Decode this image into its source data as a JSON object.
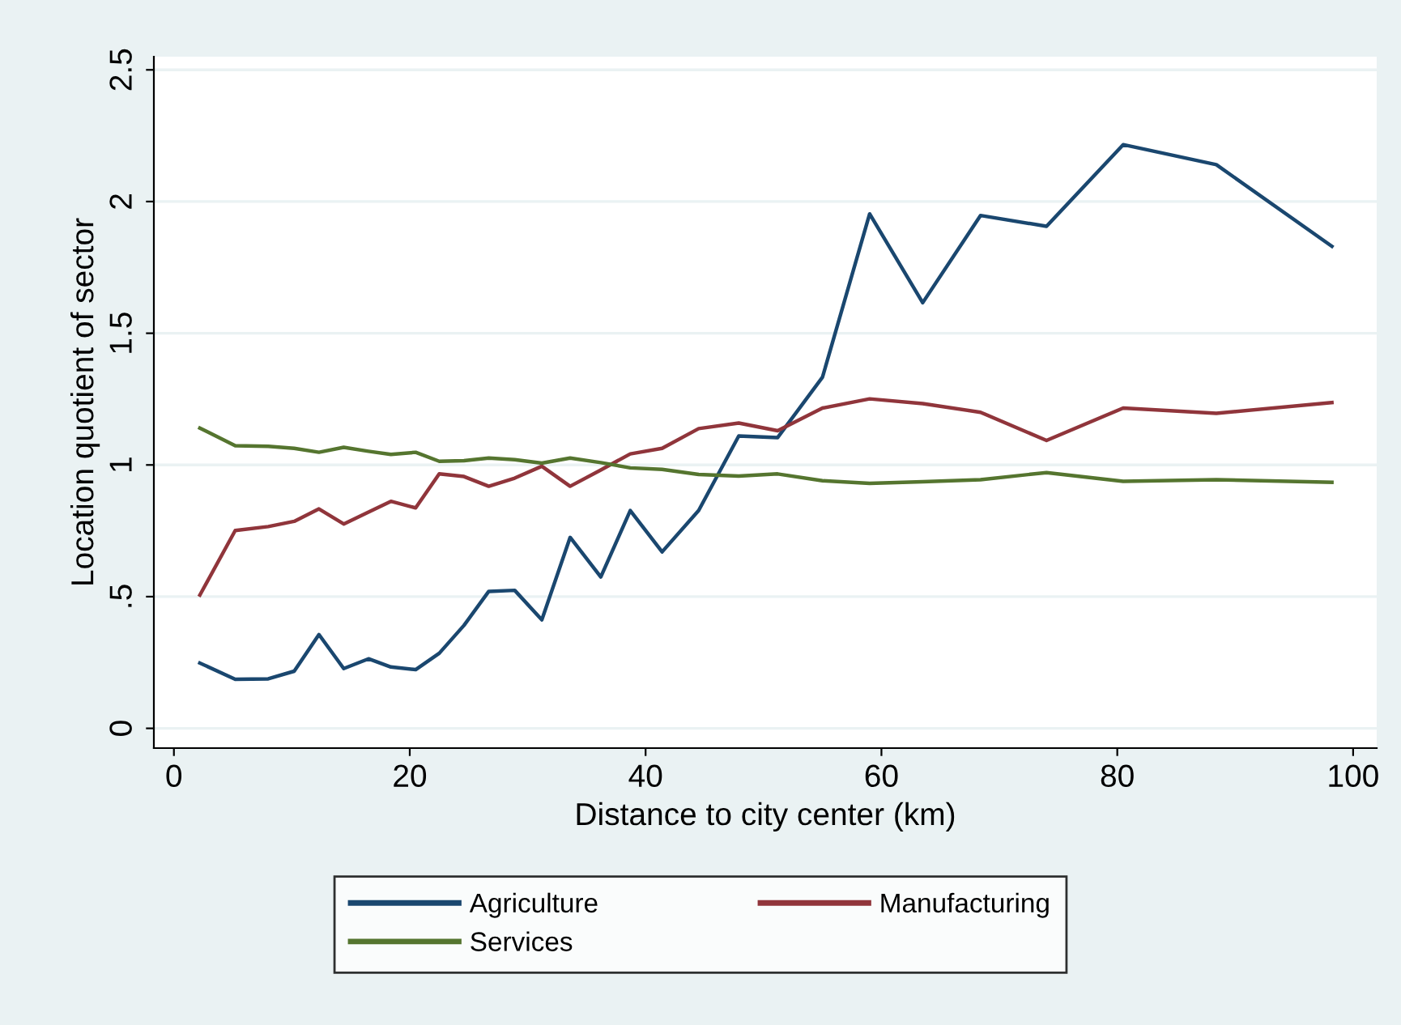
{
  "chart_data": {
    "type": "line",
    "xlabel": "Distance to city center (km)",
    "ylabel": "Location quotient of sector",
    "x": [
      2.2,
      5.2,
      8.0,
      10.2,
      12.3,
      14.4,
      16.5,
      18.4,
      20.5,
      22.5,
      24.6,
      26.7,
      28.9,
      31.2,
      33.6,
      36.2,
      38.7,
      41.4,
      44.5,
      47.9,
      51.2,
      55.0,
      59.0,
      63.5,
      68.4,
      74.0,
      80.5,
      88.4,
      98.2
    ],
    "series": [
      {
        "name": "Agriculture",
        "color": "#1a476f",
        "values": [
          0.248,
          0.186,
          0.188,
          0.217,
          0.356,
          0.227,
          0.264,
          0.233,
          0.223,
          0.285,
          0.391,
          0.52,
          0.524,
          0.412,
          0.725,
          0.575,
          0.827,
          0.67,
          0.827,
          1.11,
          1.104,
          1.333,
          1.953,
          1.616,
          1.947,
          1.906,
          2.216,
          2.14,
          1.83
        ]
      },
      {
        "name": "Manufacturing",
        "color": "#90353b",
        "values": [
          0.506,
          0.751,
          0.766,
          0.786,
          0.833,
          0.776,
          0.821,
          0.862,
          0.837,
          0.966,
          0.956,
          0.919,
          0.95,
          0.995,
          0.919,
          0.981,
          1.042,
          1.063,
          1.138,
          1.159,
          1.13,
          1.216,
          1.251,
          1.233,
          1.2,
          1.093,
          1.216,
          1.196,
          1.237
        ]
      },
      {
        "name": "Services",
        "color": "#55752f",
        "values": [
          1.14,
          1.073,
          1.071,
          1.063,
          1.048,
          1.067,
          1.052,
          1.04,
          1.048,
          1.014,
          1.016,
          1.026,
          1.02,
          1.007,
          1.026,
          1.009,
          0.989,
          0.983,
          0.964,
          0.958,
          0.966,
          0.94,
          0.93,
          0.936,
          0.944,
          0.971,
          0.938,
          0.944,
          0.934
        ]
      }
    ],
    "xlim": [
      -1.7,
      102
    ],
    "ylim": [
      -0.075,
      2.55
    ],
    "xticks": [
      0,
      20,
      40,
      60,
      80,
      100
    ],
    "yticks": [
      0,
      {
        "value": 0.5,
        "label": ".5"
      },
      1,
      1.5,
      2,
      2.5
    ],
    "grid": "y",
    "legend": "bottom",
    "marker": "none",
    "line_style": "solid"
  }
}
